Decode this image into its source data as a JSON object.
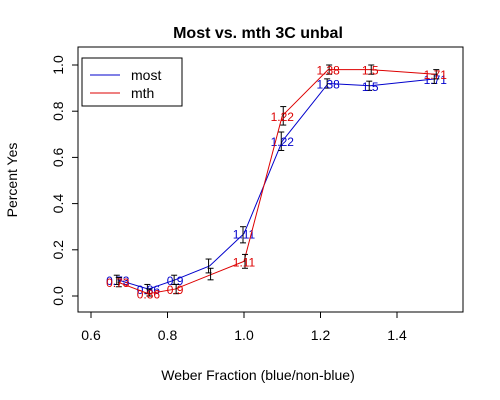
{
  "chart_data": {
    "type": "line",
    "title": "Most vs. mth 3C unbal",
    "xlabel": "Weber Fraction (blue/non-blue)",
    "ylabel": "Percent Yes",
    "xlim": [
      0.6,
      1.5
    ],
    "ylim": [
      0.0,
      1.0
    ],
    "x_ticks": [
      "0.6",
      "0.8",
      "1.0",
      "1.2",
      "1.4"
    ],
    "y_ticks": [
      "0.0",
      "0.2",
      "0.4",
      "0.6",
      "0.8",
      "1.0"
    ],
    "grid": false,
    "legend_position": "top-left",
    "x": [
      0.67,
      0.75,
      0.82,
      0.91,
      1.0,
      1.1,
      1.22,
      1.33,
      1.5
    ],
    "series": [
      {
        "name": "most",
        "color": "#0000cc",
        "values": [
          0.07,
          0.03,
          0.07,
          0.13,
          0.27,
          0.67,
          0.92,
          0.91,
          0.94
        ],
        "err_low": [
          0.05,
          0.01,
          0.05,
          0.1,
          0.23,
          0.63,
          0.9,
          0.89,
          0.92
        ],
        "err_high": [
          0.09,
          0.05,
          0.09,
          0.16,
          0.3,
          0.71,
          0.94,
          0.93,
          0.96
        ],
        "point_labels": [
          "0.73",
          "0.86",
          "0.9",
          "",
          "1.11",
          "1.22",
          "1.38",
          "1.5",
          "1.71"
        ]
      },
      {
        "name": "mth",
        "color": "#dd0000",
        "values": [
          0.06,
          0.01,
          0.03,
          0.09,
          0.15,
          0.78,
          0.98,
          0.98,
          0.96
        ],
        "err_low": [
          0.04,
          0.0,
          0.01,
          0.07,
          0.12,
          0.74,
          0.96,
          0.96,
          0.94
        ],
        "err_high": [
          0.08,
          0.03,
          0.05,
          0.12,
          0.18,
          0.82,
          1.0,
          1.0,
          0.98
        ],
        "point_labels": [
          "0.73",
          "0.86",
          "0.9",
          "",
          "1.11",
          "1.22",
          "1.38",
          "1.5",
          "1.71"
        ]
      }
    ]
  }
}
